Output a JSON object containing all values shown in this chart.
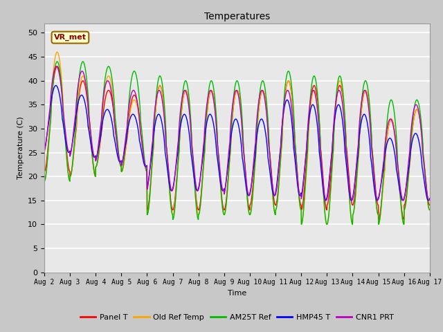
{
  "title": "Temperatures",
  "xlabel": "Time",
  "ylabel": "Temperature (C)",
  "ylim": [
    0,
    52
  ],
  "yticks": [
    0,
    5,
    10,
    15,
    20,
    25,
    30,
    35,
    40,
    45,
    50
  ],
  "x_tick_labels": [
    "Aug 2",
    "Aug 3",
    "Aug 4",
    "Aug 5",
    "Aug 6",
    "Aug 7",
    "Aug 8",
    "Aug 9",
    "Aug 10",
    "Aug 11",
    "Aug 12",
    "Aug 13",
    "Aug 14",
    "Aug 15",
    "Aug 16",
    "Aug 17"
  ],
  "legend_labels": [
    "Panel T",
    "Old Ref Temp",
    "AM25T Ref",
    "HMP45 T",
    "CNR1 PRT"
  ],
  "legend_colors": [
    "#ff0000",
    "#ffa500",
    "#00bb00",
    "#0000ff",
    "#bb00bb"
  ],
  "annotation_text": "VR_met",
  "fig_bg_color": "#c8c8c8",
  "plot_bg_color": "#e8e8e8",
  "n_days": 15,
  "series": {
    "panel_t": {
      "color": "#ff0000",
      "lw": 1.0,
      "peaks": [
        43,
        40,
        38,
        37,
        39,
        38,
        38,
        38,
        38,
        40,
        39,
        39,
        38,
        32,
        34
      ],
      "troughs": [
        21,
        20,
        22,
        21,
        13,
        13,
        13,
        13,
        14,
        14,
        13,
        14,
        14,
        11,
        14
      ]
    },
    "old_ref_temp": {
      "color": "#ffa500",
      "lw": 1.0,
      "peaks": [
        46,
        41,
        41,
        36,
        39,
        38,
        38,
        38,
        38,
        40,
        38,
        40,
        38,
        32,
        34
      ],
      "troughs": [
        19,
        20,
        22,
        21,
        12,
        12,
        12,
        12,
        12,
        13,
        10,
        10,
        12,
        10,
        13
      ]
    },
    "am25t_ref": {
      "color": "#00bb00",
      "lw": 1.0,
      "peaks": [
        44,
        44,
        43,
        42,
        41,
        40,
        40,
        40,
        40,
        42,
        41,
        41,
        40,
        36,
        36
      ],
      "troughs": [
        19,
        20,
        22,
        21,
        12,
        11,
        12,
        12,
        12,
        13,
        10,
        10,
        12,
        10,
        13
      ]
    },
    "hmp45_t": {
      "color": "#0000ff",
      "lw": 1.0,
      "peaks": [
        39,
        37,
        34,
        33,
        33,
        33,
        33,
        32,
        32,
        36,
        35,
        35,
        33,
        28,
        29
      ],
      "troughs": [
        25,
        24,
        23,
        22,
        17,
        17,
        17,
        16,
        16,
        16,
        15,
        15,
        15,
        15,
        15
      ]
    },
    "cnr1_prt": {
      "color": "#bb00bb",
      "lw": 1.0,
      "peaks": [
        43,
        42,
        40,
        38,
        38,
        38,
        38,
        38,
        38,
        38,
        38,
        38,
        38,
        32,
        35
      ],
      "troughs": [
        25,
        24,
        23,
        22,
        17,
        17,
        17,
        16,
        16,
        16,
        15,
        15,
        15,
        15,
        15
      ]
    }
  }
}
